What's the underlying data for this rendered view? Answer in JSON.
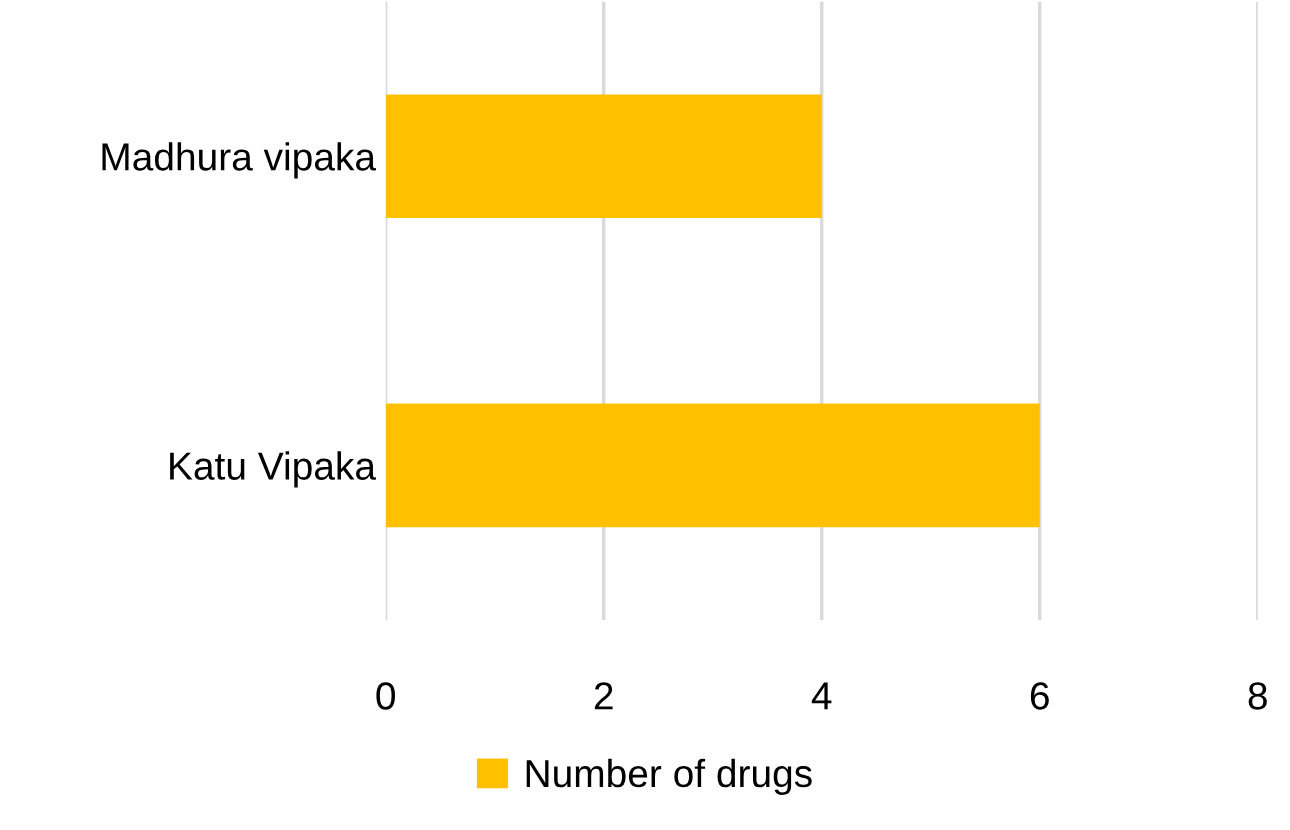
{
  "chart_data": {
    "type": "bar",
    "orientation": "horizontal",
    "categories": [
      "Madhura vipaka",
      "Katu Vipaka"
    ],
    "series": [
      {
        "name": "Number of drugs",
        "color": "#ffc000",
        "values": [
          4,
          6
        ]
      }
    ],
    "xlim": [
      0,
      8
    ],
    "xticks": [
      0,
      2,
      4,
      6,
      8
    ],
    "grid": "x",
    "legend": "bottom"
  }
}
